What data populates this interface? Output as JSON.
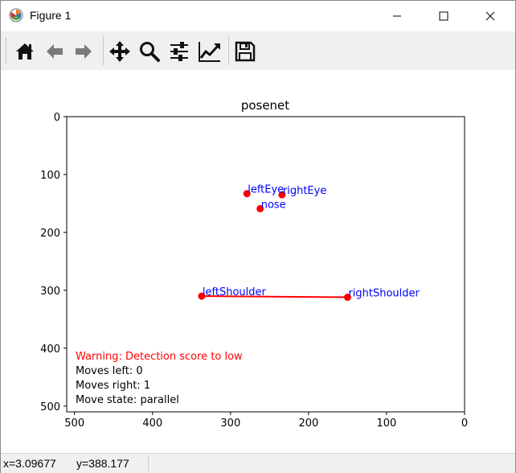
{
  "window": {
    "title": "Figure 1"
  },
  "toolbar": {
    "buttons": [
      {
        "name": "home-icon"
      },
      {
        "name": "back-arrow-icon"
      },
      {
        "name": "forward-arrow-icon"
      },
      {
        "name": "pan-move-icon"
      },
      {
        "name": "zoom-magnifier-icon"
      },
      {
        "name": "configure-subplots-icon"
      },
      {
        "name": "edit-axis-icon"
      },
      {
        "name": "save-floppy-icon"
      }
    ]
  },
  "status": {
    "x_readout": "x=3.09677",
    "y_readout": "y=388.177"
  },
  "chart_data": {
    "type": "scatter",
    "title": "posenet",
    "xlim": [
      510,
      0
    ],
    "ylim": [
      510,
      0
    ],
    "xticks": [
      "500",
      "400",
      "300",
      "200",
      "100",
      "0"
    ],
    "xtick_values": [
      500,
      400,
      300,
      200,
      100,
      0
    ],
    "yticks": [
      "0",
      "100",
      "200",
      "300",
      "400",
      "500"
    ],
    "ytick_values": [
      0,
      100,
      200,
      300,
      400,
      500
    ],
    "point_color": "#ff0000",
    "label_color": "#0000ff",
    "points": [
      {
        "label": "leftEye",
        "x": 279,
        "y": 133
      },
      {
        "label": "rightEye",
        "x": 234,
        "y": 135
      },
      {
        "label": "nose",
        "x": 262,
        "y": 159
      },
      {
        "label": "leftShoulder",
        "x": 337,
        "y": 310
      },
      {
        "label": "rightShoulder",
        "x": 150,
        "y": 312
      }
    ],
    "lines": [
      {
        "from": "leftShoulder",
        "to": "rightShoulder",
        "color": "#ff0000"
      }
    ],
    "annotations": [
      {
        "text": "Warning: Detection score to low",
        "color": "#ff0000"
      },
      {
        "text": "Moves left: 0",
        "color": "#000000"
      },
      {
        "text": "Moves right: 1",
        "color": "#000000"
      },
      {
        "text": "Move state: parallel",
        "color": "#000000"
      }
    ]
  }
}
